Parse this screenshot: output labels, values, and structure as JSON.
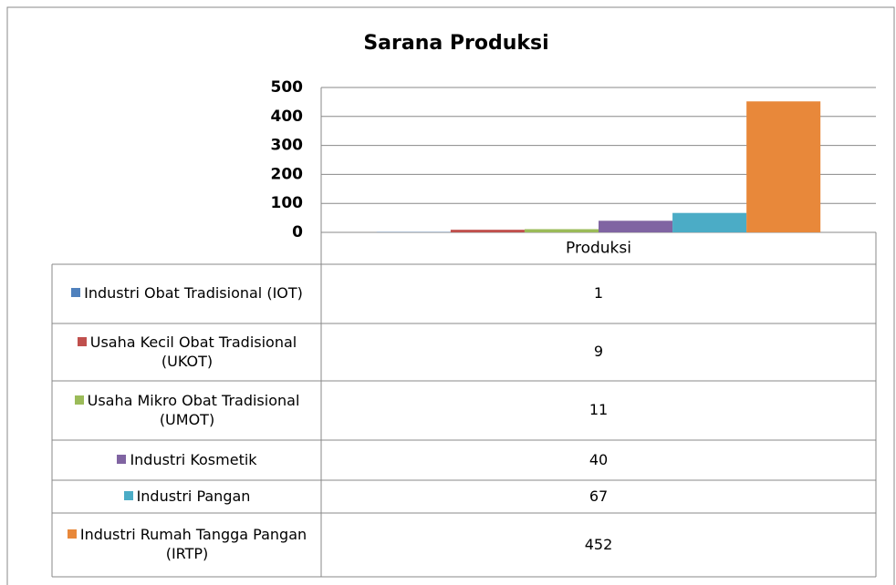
{
  "chart_data": {
    "type": "bar",
    "title": "Sarana Produksi",
    "categories": [
      "Produksi"
    ],
    "series": [
      {
        "name": "Industri Obat Tradisional (IOT)",
        "color": "#4f81bd",
        "values": [
          1
        ]
      },
      {
        "name": "Usaha Kecil Obat Tradisional (UKOT)",
        "color": "#c0504d",
        "values": [
          9
        ]
      },
      {
        "name": "Usaha Mikro Obat Tradisional (UMOT)",
        "color": "#9bbb59",
        "values": [
          11
        ]
      },
      {
        "name": "Industri Kosmetik",
        "color": "#8064a2",
        "values": [
          40
        ]
      },
      {
        "name": "Industri Pangan",
        "color": "#4bacc6",
        "values": [
          67
        ]
      },
      {
        "name": "Industri Rumah Tangga Pangan (IRTP)",
        "color": "#e8883a",
        "values": [
          452
        ]
      }
    ],
    "ylim": [
      0,
      500
    ],
    "yticks": [
      0,
      100,
      200,
      300,
      400,
      500
    ],
    "grid": true,
    "data_table": true
  }
}
